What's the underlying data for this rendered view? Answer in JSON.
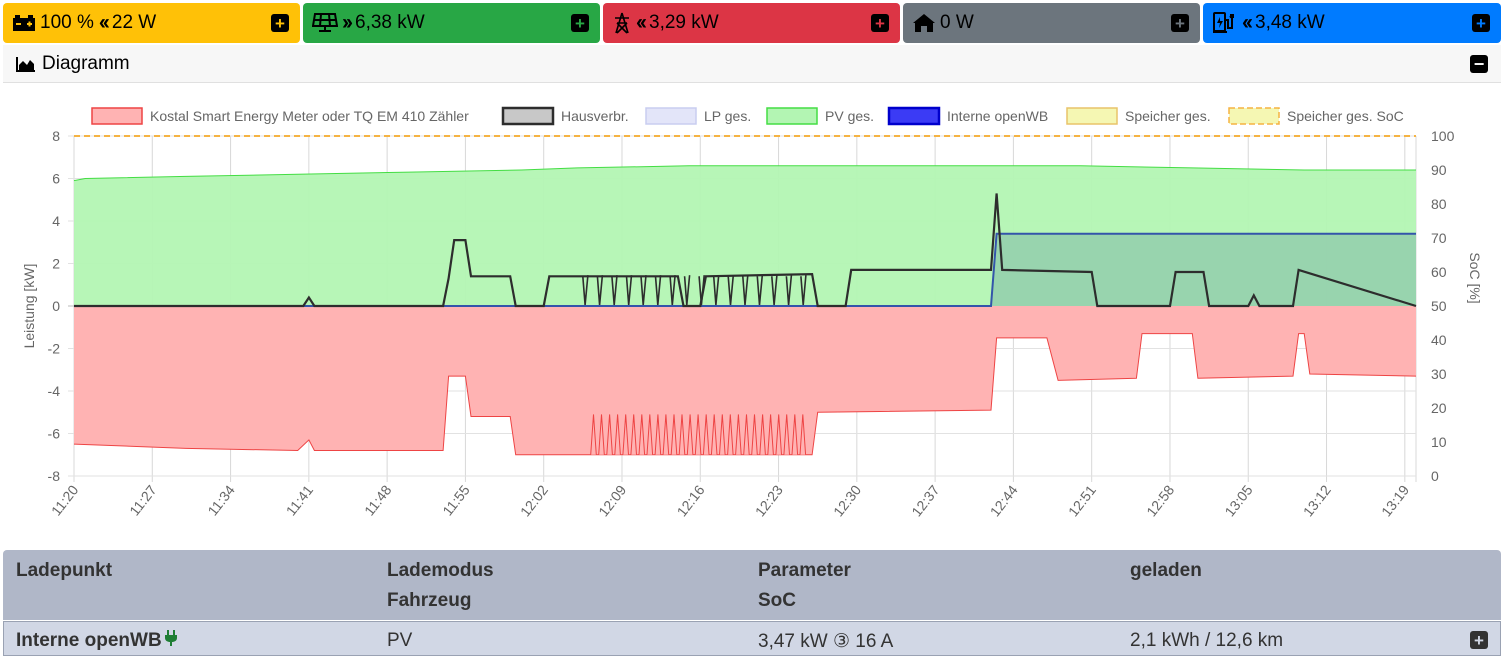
{
  "tiles": {
    "battery": {
      "value": "100 %",
      "power": "22 W",
      "icon": "battery-charging-icon",
      "color": "#ffc107"
    },
    "pv": {
      "power": "6,38 kW",
      "icon": "solar-panel-icon",
      "color": "#28a745"
    },
    "grid": {
      "power": "3,29 kW",
      "icon": "power-tower-icon",
      "color": "#dc3545"
    },
    "home": {
      "power": "0 W",
      "icon": "home-icon",
      "color": "#6c757d"
    },
    "chargepoint": {
      "power": "3,48 kW",
      "icon": "charging-station-icon",
      "color": "#007bff"
    }
  },
  "diagram": {
    "title": "Diagramm",
    "icon": "area-chart-icon"
  },
  "chart_data": {
    "type": "area",
    "title": "",
    "xlabel": "",
    "ylabel": "Leistung [kW]",
    "y2label": "SoC [%]",
    "ylim": [
      -8,
      8
    ],
    "y2lim": [
      0,
      100
    ],
    "yticks": [
      8,
      6,
      4,
      2,
      0,
      -2,
      -4,
      -6,
      -8
    ],
    "y2ticks": [
      100,
      90,
      80,
      70,
      60,
      50,
      40,
      30,
      20,
      10,
      0
    ],
    "x_tick_labels": [
      "11:20",
      "11:27",
      "11:34",
      "11:41",
      "11:48",
      "11:55",
      "12:02",
      "12:09",
      "12:16",
      "12:23",
      "12:30",
      "12:37",
      "12:44",
      "12:51",
      "12:58",
      "13:05",
      "13:12",
      "13:19"
    ],
    "x_range_minutes": [
      0,
      120
    ],
    "grid": true,
    "legend_position": "top",
    "legend": [
      {
        "name": "Kostal Smart Energy Meter oder TQ EM 410 Zähler",
        "fill": "#ffb3b3",
        "stroke": "#ee4444"
      },
      {
        "name": "Hausverbr.",
        "fill": "#c8c8c8",
        "stroke": "#2d2d2d"
      },
      {
        "name": "LP ges.",
        "fill": "#e3e5f9",
        "stroke": "#c9cdf0"
      },
      {
        "name": "PV ges.",
        "fill": "#b3f5b3",
        "stroke": "#44dd44"
      },
      {
        "name": "Interne openWB",
        "fill": "#3b3bf5",
        "stroke": "#0000cc"
      },
      {
        "name": "Speicher ges.",
        "fill": "#f5f7b3",
        "stroke": "#e8c46a"
      },
      {
        "name": "Speicher ges. SoC",
        "fill": "#f5f7b3",
        "stroke": "#f5b342"
      }
    ],
    "series": [
      {
        "name": "PV ges.",
        "points": [
          [
            0,
            5.9
          ],
          [
            1,
            6.0
          ],
          [
            10,
            6.1
          ],
          [
            20,
            6.2
          ],
          [
            30,
            6.3
          ],
          [
            40,
            6.4
          ],
          [
            45,
            6.5
          ],
          [
            55,
            6.6
          ],
          [
            60,
            6.6
          ],
          [
            70,
            6.6
          ],
          [
            80,
            6.6
          ],
          [
            90,
            6.6
          ],
          [
            100,
            6.5
          ],
          [
            110,
            6.4
          ],
          [
            120,
            6.4
          ]
        ]
      },
      {
        "name": "Kostal Smart Energy Meter oder TQ EM 410 Zähler",
        "points": [
          [
            0,
            -6.5
          ],
          [
            10,
            -6.7
          ],
          [
            20,
            -6.8
          ],
          [
            21,
            -6.3
          ],
          [
            21.5,
            -6.8
          ],
          [
            33,
            -6.8
          ],
          [
            33.5,
            -3.3
          ],
          [
            35,
            -3.3
          ],
          [
            35.5,
            -5.2
          ],
          [
            39,
            -5.2
          ],
          [
            39.5,
            -7.0
          ],
          [
            46,
            -7.0
          ],
          [
            55,
            -7.0
          ],
          [
            66,
            -7.0
          ],
          [
            66.5,
            -5.0
          ],
          [
            82,
            -4.9
          ],
          [
            82.5,
            -1.5
          ],
          [
            87,
            -1.5
          ],
          [
            88,
            -3.5
          ],
          [
            95,
            -3.4
          ],
          [
            95.5,
            -1.3
          ],
          [
            100,
            -1.3
          ],
          [
            100.5,
            -3.4
          ],
          [
            109,
            -3.3
          ],
          [
            109.5,
            -1.3
          ],
          [
            110,
            -1.3
          ],
          [
            110.5,
            -3.2
          ],
          [
            120,
            -3.3
          ]
        ]
      },
      {
        "name": "Hausverbr.",
        "points": [
          [
            0,
            0
          ],
          [
            20.5,
            0
          ],
          [
            21,
            0.4
          ],
          [
            21.5,
            0
          ],
          [
            33,
            0
          ],
          [
            33.5,
            1.3
          ],
          [
            34,
            3.1
          ],
          [
            35,
            3.1
          ],
          [
            35.5,
            1.4
          ],
          [
            39,
            1.4
          ],
          [
            39.5,
            0
          ],
          [
            42,
            0
          ],
          [
            42.5,
            1.4
          ],
          [
            54,
            1.4
          ],
          [
            54.5,
            0
          ],
          [
            56,
            0
          ],
          [
            56.5,
            1.4
          ],
          [
            66,
            1.5
          ],
          [
            66.5,
            0
          ],
          [
            69,
            0
          ],
          [
            69.5,
            1.7
          ],
          [
            82,
            1.7
          ],
          [
            82.5,
            5.3
          ],
          [
            83,
            1.7
          ],
          [
            91,
            1.6
          ],
          [
            91.5,
            0
          ],
          [
            98,
            0
          ],
          [
            98.5,
            1.6
          ],
          [
            101,
            1.6
          ],
          [
            101.5,
            0
          ],
          [
            105,
            0
          ],
          [
            105.5,
            0.5
          ],
          [
            106,
            0
          ],
          [
            109,
            0
          ],
          [
            109.5,
            1.7
          ],
          [
            120,
            0
          ]
        ]
      },
      {
        "name": "Interne openWB",
        "points": [
          [
            0,
            0
          ],
          [
            82,
            0
          ],
          [
            82.5,
            3.4
          ],
          [
            120,
            3.4
          ]
        ]
      },
      {
        "name": "Speicher ges. SoC",
        "axis": "y2",
        "points": [
          [
            0,
            100
          ],
          [
            120,
            100
          ]
        ]
      }
    ]
  },
  "table": {
    "headers": {
      "col1": "Ladepunkt",
      "col2a": "Lademodus",
      "col2b": "Fahrzeug",
      "col3a": "Parameter",
      "col3b": "SoC",
      "col4": "geladen"
    },
    "rows": [
      {
        "name": "Interne openWB",
        "mode": "PV",
        "params": "3,47 kW ③ 16 A",
        "charged": "2,1 kWh / 12,6 km",
        "status_icon": "plug-icon"
      }
    ]
  }
}
